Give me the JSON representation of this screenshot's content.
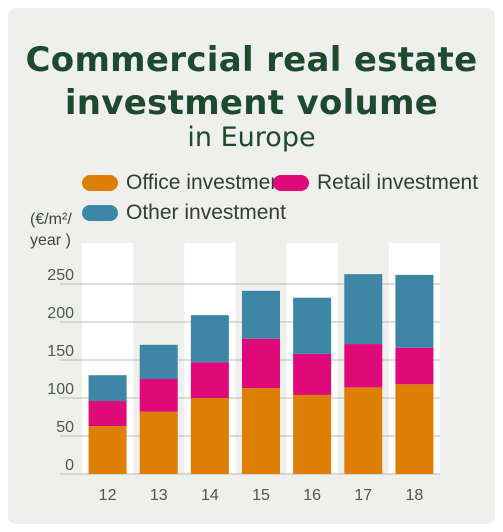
{
  "chart_data": {
    "type": "bar",
    "stacked": true,
    "title": "Commercial real estate investment volume",
    "title_line1": "Commercial real estate",
    "title_line2": "investment volume",
    "subtitle": "in Europe",
    "ylabel": "(€/m²/ year )",
    "ylabel_line1": "(€/m²/",
    "ylabel_line2": "year )",
    "xlabel": "",
    "ylim": [
      0,
      280
    ],
    "yticks": [
      0,
      50,
      100,
      150,
      200,
      250
    ],
    "categories": [
      "12",
      "13",
      "14",
      "15",
      "16",
      "17",
      "18"
    ],
    "legend_position": "top",
    "series": [
      {
        "name": "Office investment",
        "color": "#de7f05",
        "values": [
          63,
          82,
          100,
          113,
          104,
          114,
          118
        ]
      },
      {
        "name": "Retail investment",
        "color": "#e0097a",
        "values": [
          33,
          43,
          47,
          65,
          54,
          57,
          48
        ]
      },
      {
        "name": "Other investment",
        "color": "#3d86a6",
        "values": [
          34,
          45,
          62,
          63,
          74,
          92,
          96
        ]
      }
    ]
  }
}
